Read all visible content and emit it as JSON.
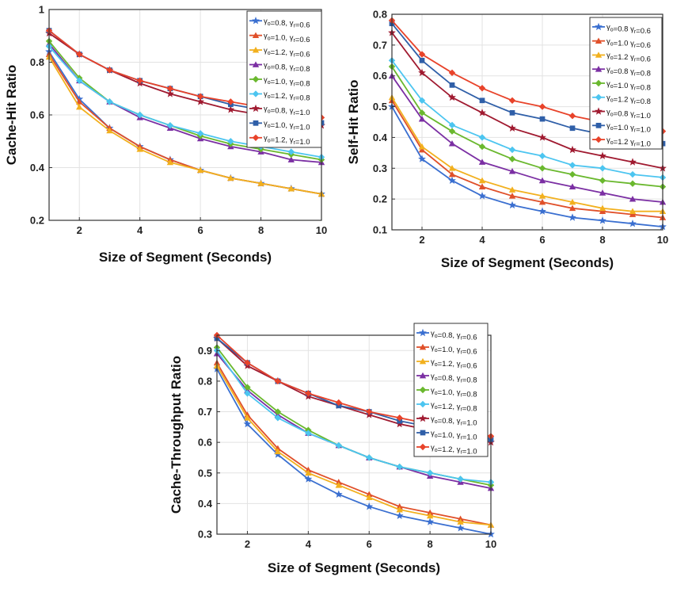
{
  "chart_data": [
    {
      "type": "line",
      "xlabel": "Size of Segment (Seconds)",
      "ylabel": "Cache-Hit Ratio",
      "xlim": [
        1,
        10
      ],
      "ylim": [
        0.2,
        1.0
      ],
      "xticks": [
        2,
        4,
        6,
        8,
        10
      ],
      "yticks": [
        0.2,
        0.4,
        0.6,
        0.8,
        1
      ],
      "ytick_labels": [
        "0.2",
        "0.4",
        "0.6",
        "0.8",
        "1"
      ],
      "grid": true,
      "legend": "top-right",
      "x": [
        1,
        2,
        3,
        4,
        5,
        6,
        7,
        8,
        9,
        10
      ],
      "series": [
        {
          "name": "γo=0.8, γr=0.6",
          "values": [
            0.84,
            0.66,
            0.55,
            0.48,
            0.43,
            0.39,
            0.36,
            0.34,
            0.32,
            0.3
          ]
        },
        {
          "name": "γo=1.0, γr=0.6",
          "values": [
            0.83,
            0.65,
            0.55,
            0.48,
            0.43,
            0.39,
            0.36,
            0.34,
            0.32,
            0.3
          ]
        },
        {
          "name": "γo=1.2, γr=0.6",
          "values": [
            0.82,
            0.63,
            0.54,
            0.47,
            0.42,
            0.39,
            0.36,
            0.34,
            0.32,
            0.3
          ]
        },
        {
          "name": "γo=0.8, γr=0.8",
          "values": [
            0.87,
            0.73,
            0.65,
            0.59,
            0.55,
            0.51,
            0.48,
            0.46,
            0.43,
            0.42
          ]
        },
        {
          "name": "γo=1.0, γr=0.8",
          "values": [
            0.88,
            0.74,
            0.65,
            0.6,
            0.56,
            0.52,
            0.49,
            0.47,
            0.45,
            0.43
          ]
        },
        {
          "name": "γo=1.2, γr=0.8",
          "values": [
            0.86,
            0.73,
            0.65,
            0.6,
            0.56,
            0.53,
            0.5,
            0.48,
            0.46,
            0.44
          ]
        },
        {
          "name": "γo=0.8, γr=1.0",
          "values": [
            0.91,
            0.83,
            0.77,
            0.72,
            0.68,
            0.65,
            0.62,
            0.6,
            0.58,
            0.56
          ]
        },
        {
          "name": "γo=1.0, γr=1.0",
          "values": [
            0.92,
            0.83,
            0.77,
            0.73,
            0.7,
            0.67,
            0.64,
            0.62,
            0.6,
            0.57
          ]
        },
        {
          "name": "γo=1.2, γr=1.0",
          "values": [
            0.92,
            0.83,
            0.77,
            0.73,
            0.7,
            0.67,
            0.65,
            0.63,
            0.61,
            0.59
          ]
        }
      ]
    },
    {
      "type": "line",
      "xlabel": "Size of Segment (Seconds)",
      "ylabel": "Self-Hit Ratio",
      "xlim": [
        1,
        10
      ],
      "ylim": [
        0.1,
        0.8
      ],
      "xticks": [
        2,
        4,
        6,
        8,
        10
      ],
      "yticks": [
        0.1,
        0.2,
        0.3,
        0.4,
        0.5,
        0.6,
        0.7,
        0.8
      ],
      "ytick_labels": [
        "0.1",
        "0.2",
        "0.3",
        "0.4",
        "0.5",
        "0.6",
        "0.7",
        "0.8"
      ],
      "grid": true,
      "legend": "top-right",
      "x": [
        1,
        2,
        3,
        4,
        5,
        6,
        7,
        8,
        9,
        10
      ],
      "series": [
        {
          "name": "γo=0.8 γr=0.6",
          "values": [
            0.5,
            0.33,
            0.26,
            0.21,
            0.18,
            0.16,
            0.14,
            0.13,
            0.12,
            0.11
          ]
        },
        {
          "name": "γo=1.0 γr=0.6",
          "values": [
            0.52,
            0.36,
            0.28,
            0.24,
            0.21,
            0.19,
            0.17,
            0.16,
            0.15,
            0.14
          ]
        },
        {
          "name": "γo=1.2 γr=0.6",
          "values": [
            0.53,
            0.37,
            0.3,
            0.26,
            0.23,
            0.21,
            0.19,
            0.17,
            0.16,
            0.16
          ]
        },
        {
          "name": "γo=0.8 γr=0.8",
          "values": [
            0.6,
            0.46,
            0.38,
            0.32,
            0.29,
            0.26,
            0.24,
            0.22,
            0.2,
            0.19
          ]
        },
        {
          "name": "γo=1.0 γr=0.8",
          "values": [
            0.63,
            0.48,
            0.42,
            0.37,
            0.33,
            0.3,
            0.28,
            0.26,
            0.25,
            0.24
          ]
        },
        {
          "name": "γo=1.2 γr=0.8",
          "values": [
            0.65,
            0.52,
            0.44,
            0.4,
            0.36,
            0.34,
            0.31,
            0.3,
            0.28,
            0.27
          ]
        },
        {
          "name": "γo=0.8 γr=1.0",
          "values": [
            0.74,
            0.61,
            0.53,
            0.48,
            0.43,
            0.4,
            0.36,
            0.34,
            0.32,
            0.3
          ]
        },
        {
          "name": "γo=1.0 γr=1.0",
          "values": [
            0.77,
            0.65,
            0.57,
            0.52,
            0.48,
            0.46,
            0.43,
            0.41,
            0.39,
            0.38
          ]
        },
        {
          "name": "γo=1.2 γr=1.0",
          "values": [
            0.78,
            0.67,
            0.61,
            0.56,
            0.52,
            0.5,
            0.47,
            0.45,
            0.44,
            0.42
          ]
        }
      ]
    },
    {
      "type": "line",
      "xlabel": "Size of Segment (Seconds)",
      "ylabel": "Cache-Throughput Ratio",
      "xlim": [
        1,
        10
      ],
      "ylim": [
        0.3,
        0.95
      ],
      "xticks": [
        2,
        4,
        6,
        8,
        10
      ],
      "yticks": [
        0.3,
        0.4,
        0.5,
        0.6,
        0.7,
        0.8,
        0.9
      ],
      "ytick_labels": [
        "0.3",
        "0.4",
        "0.5",
        "0.6",
        "0.7",
        "0.8",
        "0.9"
      ],
      "grid": true,
      "legend": "top-right",
      "x": [
        1,
        2,
        3,
        4,
        5,
        6,
        7,
        8,
        9,
        10
      ],
      "series": [
        {
          "name": "γo=0.8, γr=0.6",
          "values": [
            0.84,
            0.66,
            0.56,
            0.48,
            0.43,
            0.39,
            0.36,
            0.34,
            0.32,
            0.3
          ]
        },
        {
          "name": "γo=1.0, γr=0.6",
          "values": [
            0.86,
            0.69,
            0.58,
            0.51,
            0.47,
            0.43,
            0.39,
            0.37,
            0.35,
            0.33
          ]
        },
        {
          "name": "γo=1.2, γr=0.6",
          "values": [
            0.85,
            0.68,
            0.57,
            0.5,
            0.46,
            0.42,
            0.38,
            0.36,
            0.34,
            0.33
          ]
        },
        {
          "name": "γo=0.8, γr=0.8",
          "values": [
            0.89,
            0.77,
            0.69,
            0.63,
            0.59,
            0.55,
            0.52,
            0.49,
            0.47,
            0.45
          ]
        },
        {
          "name": "γo=1.0, γr=0.8",
          "values": [
            0.91,
            0.78,
            0.7,
            0.64,
            0.59,
            0.55,
            0.52,
            0.5,
            0.48,
            0.46
          ]
        },
        {
          "name": "γo=1.2, γr=0.8",
          "values": [
            0.9,
            0.76,
            0.68,
            0.63,
            0.59,
            0.55,
            0.52,
            0.5,
            0.48,
            0.47
          ]
        },
        {
          "name": "γo=0.8, γr=1.0",
          "values": [
            0.94,
            0.85,
            0.8,
            0.75,
            0.72,
            0.69,
            0.66,
            0.64,
            0.62,
            0.6
          ]
        },
        {
          "name": "γo=1.0, γr=1.0",
          "values": [
            0.94,
            0.86,
            0.8,
            0.76,
            0.72,
            0.7,
            0.67,
            0.65,
            0.63,
            0.61
          ]
        },
        {
          "name": "γo=1.2, γr=1.0",
          "values": [
            0.95,
            0.86,
            0.8,
            0.76,
            0.73,
            0.7,
            0.68,
            0.66,
            0.64,
            0.62
          ]
        }
      ]
    }
  ],
  "series_colors": [
    "#3a6fd0",
    "#e0502a",
    "#f2b01e",
    "#7b2fa3",
    "#6ab82e",
    "#4cc5f0",
    "#a01a30",
    "#2f5fa8",
    "#e8432a"
  ],
  "series_markers": [
    "star",
    "triangle",
    "triangle",
    "triangle",
    "diamond",
    "diamond",
    "star",
    "square",
    "diamond"
  ]
}
